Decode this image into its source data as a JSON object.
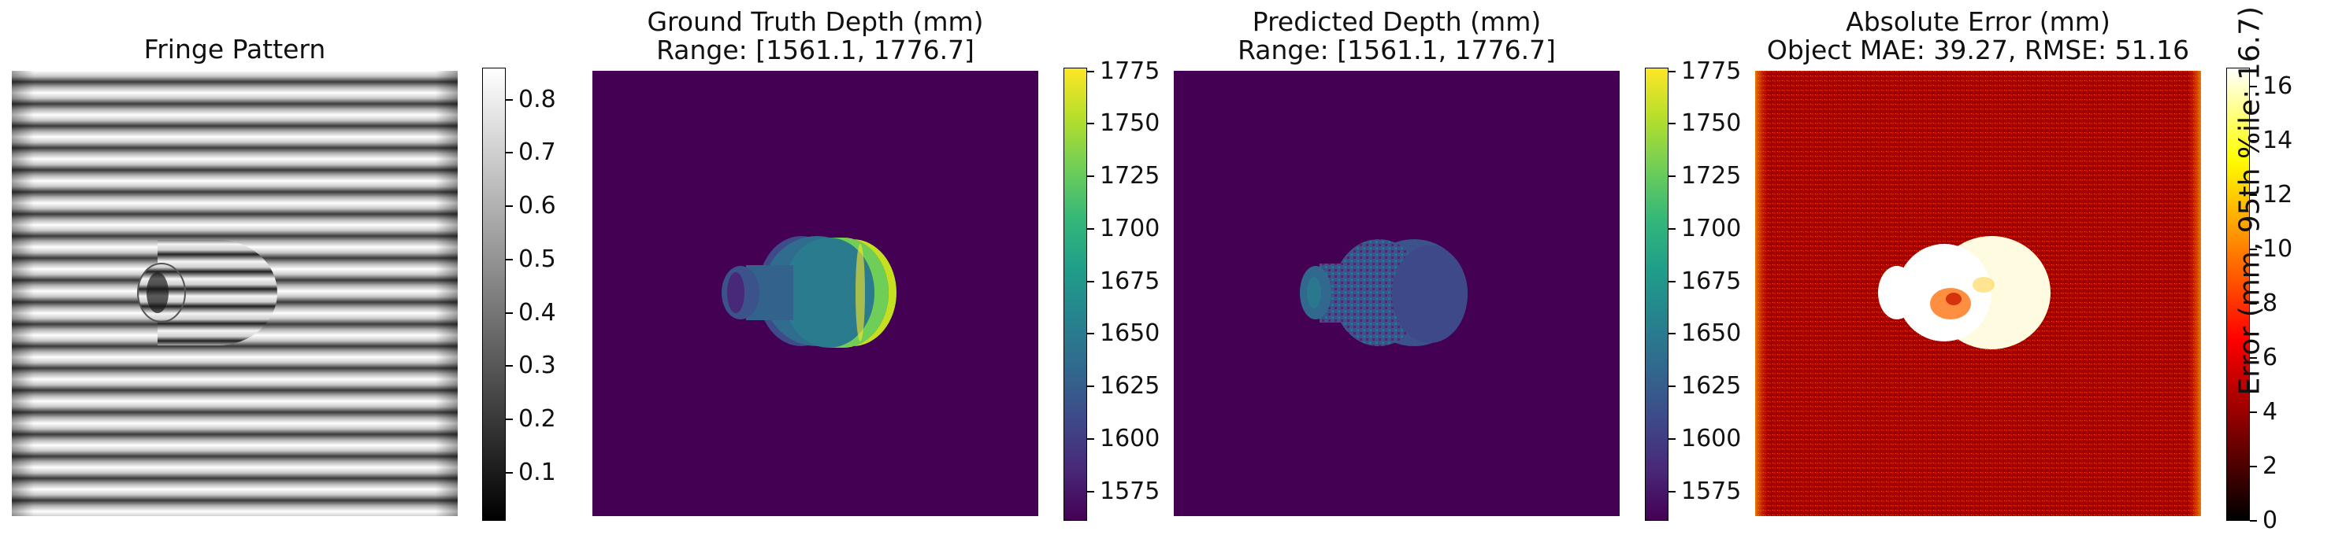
{
  "chart_data": [
    {
      "type": "heatmap",
      "title": "Fringe Pattern",
      "colormap": "gray",
      "colorbar": {
        "ticks": [
          0.1,
          0.2,
          0.3,
          0.4,
          0.5,
          0.6,
          0.7,
          0.8
        ],
        "vmin": 0.01,
        "vmax": 0.86,
        "label": ""
      }
    },
    {
      "type": "heatmap",
      "title": "Ground Truth Depth (mm)",
      "subtitle": "Range: [1561.1, 1776.7]",
      "colormap": "viridis",
      "colorbar": {
        "ticks": [
          1575,
          1600,
          1625,
          1650,
          1675,
          1700,
          1725,
          1750,
          1775
        ],
        "vmin": 1561.1,
        "vmax": 1776.7,
        "label": ""
      }
    },
    {
      "type": "heatmap",
      "title": "Predicted Depth (mm)",
      "subtitle": "Range: [1561.1, 1776.7]",
      "colormap": "viridis",
      "colorbar": {
        "ticks": [
          1575,
          1600,
          1625,
          1650,
          1675,
          1700,
          1725,
          1750,
          1775
        ],
        "vmin": 1561.1,
        "vmax": 1776.7,
        "label": ""
      }
    },
    {
      "type": "heatmap",
      "title": "Absolute Error (mm)",
      "subtitle": "Object MAE: 39.27, RMSE: 51.16",
      "colormap": "hot",
      "colorbar": {
        "ticks": [
          0,
          2,
          4,
          6,
          8,
          10,
          12,
          14,
          16
        ],
        "vmin": 0,
        "vmax": 16.7,
        "label": "Error (mm, 95th %ile: 16.7)"
      }
    }
  ],
  "colors": {
    "viridis_low": "#440154",
    "viridis_mid": "#21918c",
    "viridis_high": "#fde725",
    "hot_low": "#000000",
    "hot_mid": "#ff2000",
    "hot_high": "#ffffff",
    "error_background": "#b00000"
  }
}
